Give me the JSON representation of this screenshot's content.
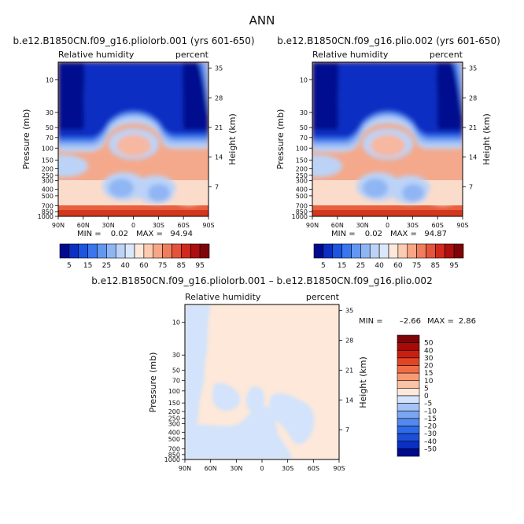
{
  "page_title": "ANN",
  "colors": {
    "abs_scale": [
      "#000a8e",
      "#0a2fc2",
      "#1b55e0",
      "#3a77ef",
      "#6497f2",
      "#8fb5f4",
      "#bcd3f7",
      "#dbe8fb",
      "#fde8da",
      "#fccbb1",
      "#f8a686",
      "#f07e5e",
      "#e4543a",
      "#d02a1e",
      "#ad0e0f",
      "#7e0407"
    ],
    "diff_scale": [
      "#000a8e",
      "#0a2fc2",
      "#1c4fd9",
      "#2f6ae8",
      "#5388ed",
      "#7ba6f1",
      "#a6c3f5",
      "#d2e3fb",
      "#fde8da",
      "#fbc3a6",
      "#f79a74",
      "#ef6e45",
      "#e14524",
      "#c91f12",
      "#a70b08",
      "#7e0407"
    ],
    "diff_neg": "#d2e3fb",
    "diff_pos": "#fde8da"
  },
  "chart_data": [
    {
      "id": "panel-1",
      "type": "heatmap",
      "title": "b.e12.B1850CN.f09_g16.pliolorb.001 (yrs 601-650)",
      "left_label": "Relative humidity",
      "right_label": "percent",
      "ylabel": "Pressure (mb)",
      "y2label": "Height (km)",
      "xticks": [
        "90N",
        "60N",
        "30N",
        "0",
        "30S",
        "60S",
        "90S"
      ],
      "yticks": [
        "10",
        "30",
        "50",
        "70",
        "100",
        "150",
        "200",
        "250",
        "300",
        "400",
        "500",
        "700",
        "850",
        "1000"
      ],
      "y2ticks": [
        "35",
        "28",
        "21",
        "14",
        "7"
      ],
      "min_label": "MIN =",
      "min_value": "0.02",
      "max_label": "MAX =",
      "max_value": "94.94",
      "colorbar_labels": [
        "5",
        "15",
        "25",
        "40",
        "60",
        "75",
        "85",
        "95"
      ]
    },
    {
      "id": "panel-2",
      "type": "heatmap",
      "title": "b.e12.B1850CN.f09_g16.plio.002 (yrs 601-650)",
      "left_label": "Relative humidity",
      "right_label": "percent",
      "ylabel": "Pressure (mb)",
      "y2label": "Height (km)",
      "xticks": [
        "90N",
        "60N",
        "30N",
        "0",
        "30S",
        "60S",
        "90S"
      ],
      "yticks": [
        "10",
        "30",
        "50",
        "70",
        "100",
        "150",
        "200",
        "250",
        "300",
        "400",
        "500",
        "700",
        "850",
        "1000"
      ],
      "y2ticks": [
        "35",
        "28",
        "21",
        "14",
        "7"
      ],
      "min_label": "MIN =",
      "min_value": "0.02",
      "max_label": "MAX =",
      "max_value": "94.87",
      "colorbar_labels": [
        "5",
        "15",
        "25",
        "40",
        "60",
        "75",
        "85",
        "95"
      ]
    },
    {
      "id": "panel-3",
      "type": "heatmap",
      "title": "b.e12.B1850CN.f09_g16.pliolorb.001 – b.e12.B1850CN.f09_g16.plio.002",
      "left_label": "Relative humidity",
      "right_label": "percent",
      "ylabel": "Pressure (mb)",
      "y2label": "Height (km)",
      "xticks": [
        "90N",
        "60N",
        "30N",
        "0",
        "30S",
        "60S",
        "90S"
      ],
      "yticks": [
        "10",
        "30",
        "50",
        "70",
        "100",
        "150",
        "200",
        "250",
        "300",
        "400",
        "500",
        "700",
        "850",
        "1000"
      ],
      "y2ticks": [
        "35",
        "28",
        "21",
        "14",
        "7"
      ],
      "min_label": "MIN =",
      "min_value": "–2.66",
      "max_label": "MAX =",
      "max_value": "2.86",
      "colorbar_labels": [
        "50",
        "40",
        "30",
        "20",
        "15",
        "10",
        "5",
        "0",
        "–5",
        "–10",
        "–15",
        "–20",
        "–30",
        "–40",
        "–50"
      ]
    }
  ]
}
